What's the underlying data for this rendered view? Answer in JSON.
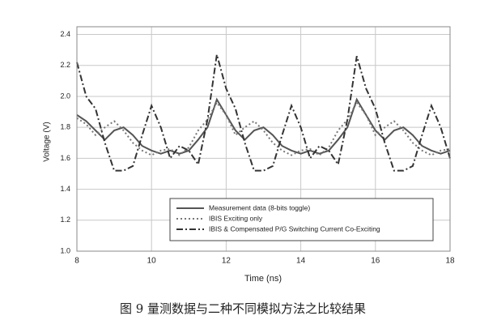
{
  "chart_data": {
    "type": "line",
    "caption": "图 9 量测数据与二种不同模拟方法之比较结果",
    "xlabel": "Time (ns)",
    "ylabel": "Voltage (V)",
    "x": [
      8,
      8.25,
      8.5,
      8.75,
      9,
      9.25,
      9.5,
      9.75,
      10,
      10.25,
      10.5,
      10.75,
      11,
      11.25,
      11.5,
      11.75,
      12,
      12.25,
      12.5,
      12.75,
      13,
      13.25,
      13.5,
      13.75,
      14,
      14.25,
      14.5,
      14.75,
      15,
      15.25,
      15.5,
      15.75,
      16,
      16.25,
      16.5,
      16.75,
      17,
      17.25,
      17.5,
      17.75,
      18
    ],
    "series": [
      {
        "name": "Measurement data (8-bits toggle)",
        "color": "#555555",
        "dash": "none",
        "values": [
          1.88,
          1.84,
          1.78,
          1.72,
          1.78,
          1.8,
          1.75,
          1.68,
          1.65,
          1.63,
          1.65,
          1.63,
          1.65,
          1.72,
          1.8,
          1.98,
          1.88,
          1.78,
          1.72,
          1.78,
          1.8,
          1.75,
          1.68,
          1.65,
          1.63,
          1.65,
          1.63,
          1.65,
          1.72,
          1.8,
          1.98,
          1.88,
          1.78,
          1.72,
          1.78,
          1.8,
          1.75,
          1.68,
          1.65,
          1.63,
          1.65
        ]
      },
      {
        "name": "IBIS Exciting only",
        "color": "#777777",
        "dash": "2 3",
        "values": [
          1.86,
          1.82,
          1.75,
          1.8,
          1.84,
          1.78,
          1.7,
          1.65,
          1.62,
          1.65,
          1.66,
          1.62,
          1.67,
          1.78,
          1.85,
          1.96,
          1.88,
          1.75,
          1.8,
          1.84,
          1.78,
          1.7,
          1.65,
          1.62,
          1.65,
          1.66,
          1.62,
          1.67,
          1.78,
          1.85,
          1.96,
          1.88,
          1.75,
          1.8,
          1.84,
          1.78,
          1.7,
          1.65,
          1.62,
          1.65,
          1.66
        ]
      },
      {
        "name": "IBIS & Compensated P/G Switching Current Co-Exciting",
        "color": "#333333",
        "dash": "8 3 2 3",
        "values": [
          2.22,
          2.0,
          1.92,
          1.7,
          1.52,
          1.52,
          1.55,
          1.75,
          1.94,
          1.8,
          1.6,
          1.68,
          1.65,
          1.56,
          1.85,
          2.27,
          2.05,
          1.92,
          1.7,
          1.52,
          1.52,
          1.55,
          1.75,
          1.94,
          1.8,
          1.6,
          1.68,
          1.65,
          1.56,
          1.85,
          2.26,
          2.05,
          1.92,
          1.7,
          1.52,
          1.52,
          1.55,
          1.75,
          1.94,
          1.8,
          1.6
        ]
      }
    ],
    "xlim": [
      8,
      18
    ],
    "xticks": [
      8,
      10,
      12,
      14,
      16,
      18
    ],
    "ylim": [
      1,
      2.45
    ],
    "yticks": [
      {
        "value": 1,
        "label": "1.0"
      },
      1.2,
      1.4,
      1.6,
      1.8,
      {
        "value": 2,
        "label": "2.0"
      },
      2.2,
      2.4
    ],
    "grid": true,
    "legend": "lower right"
  }
}
